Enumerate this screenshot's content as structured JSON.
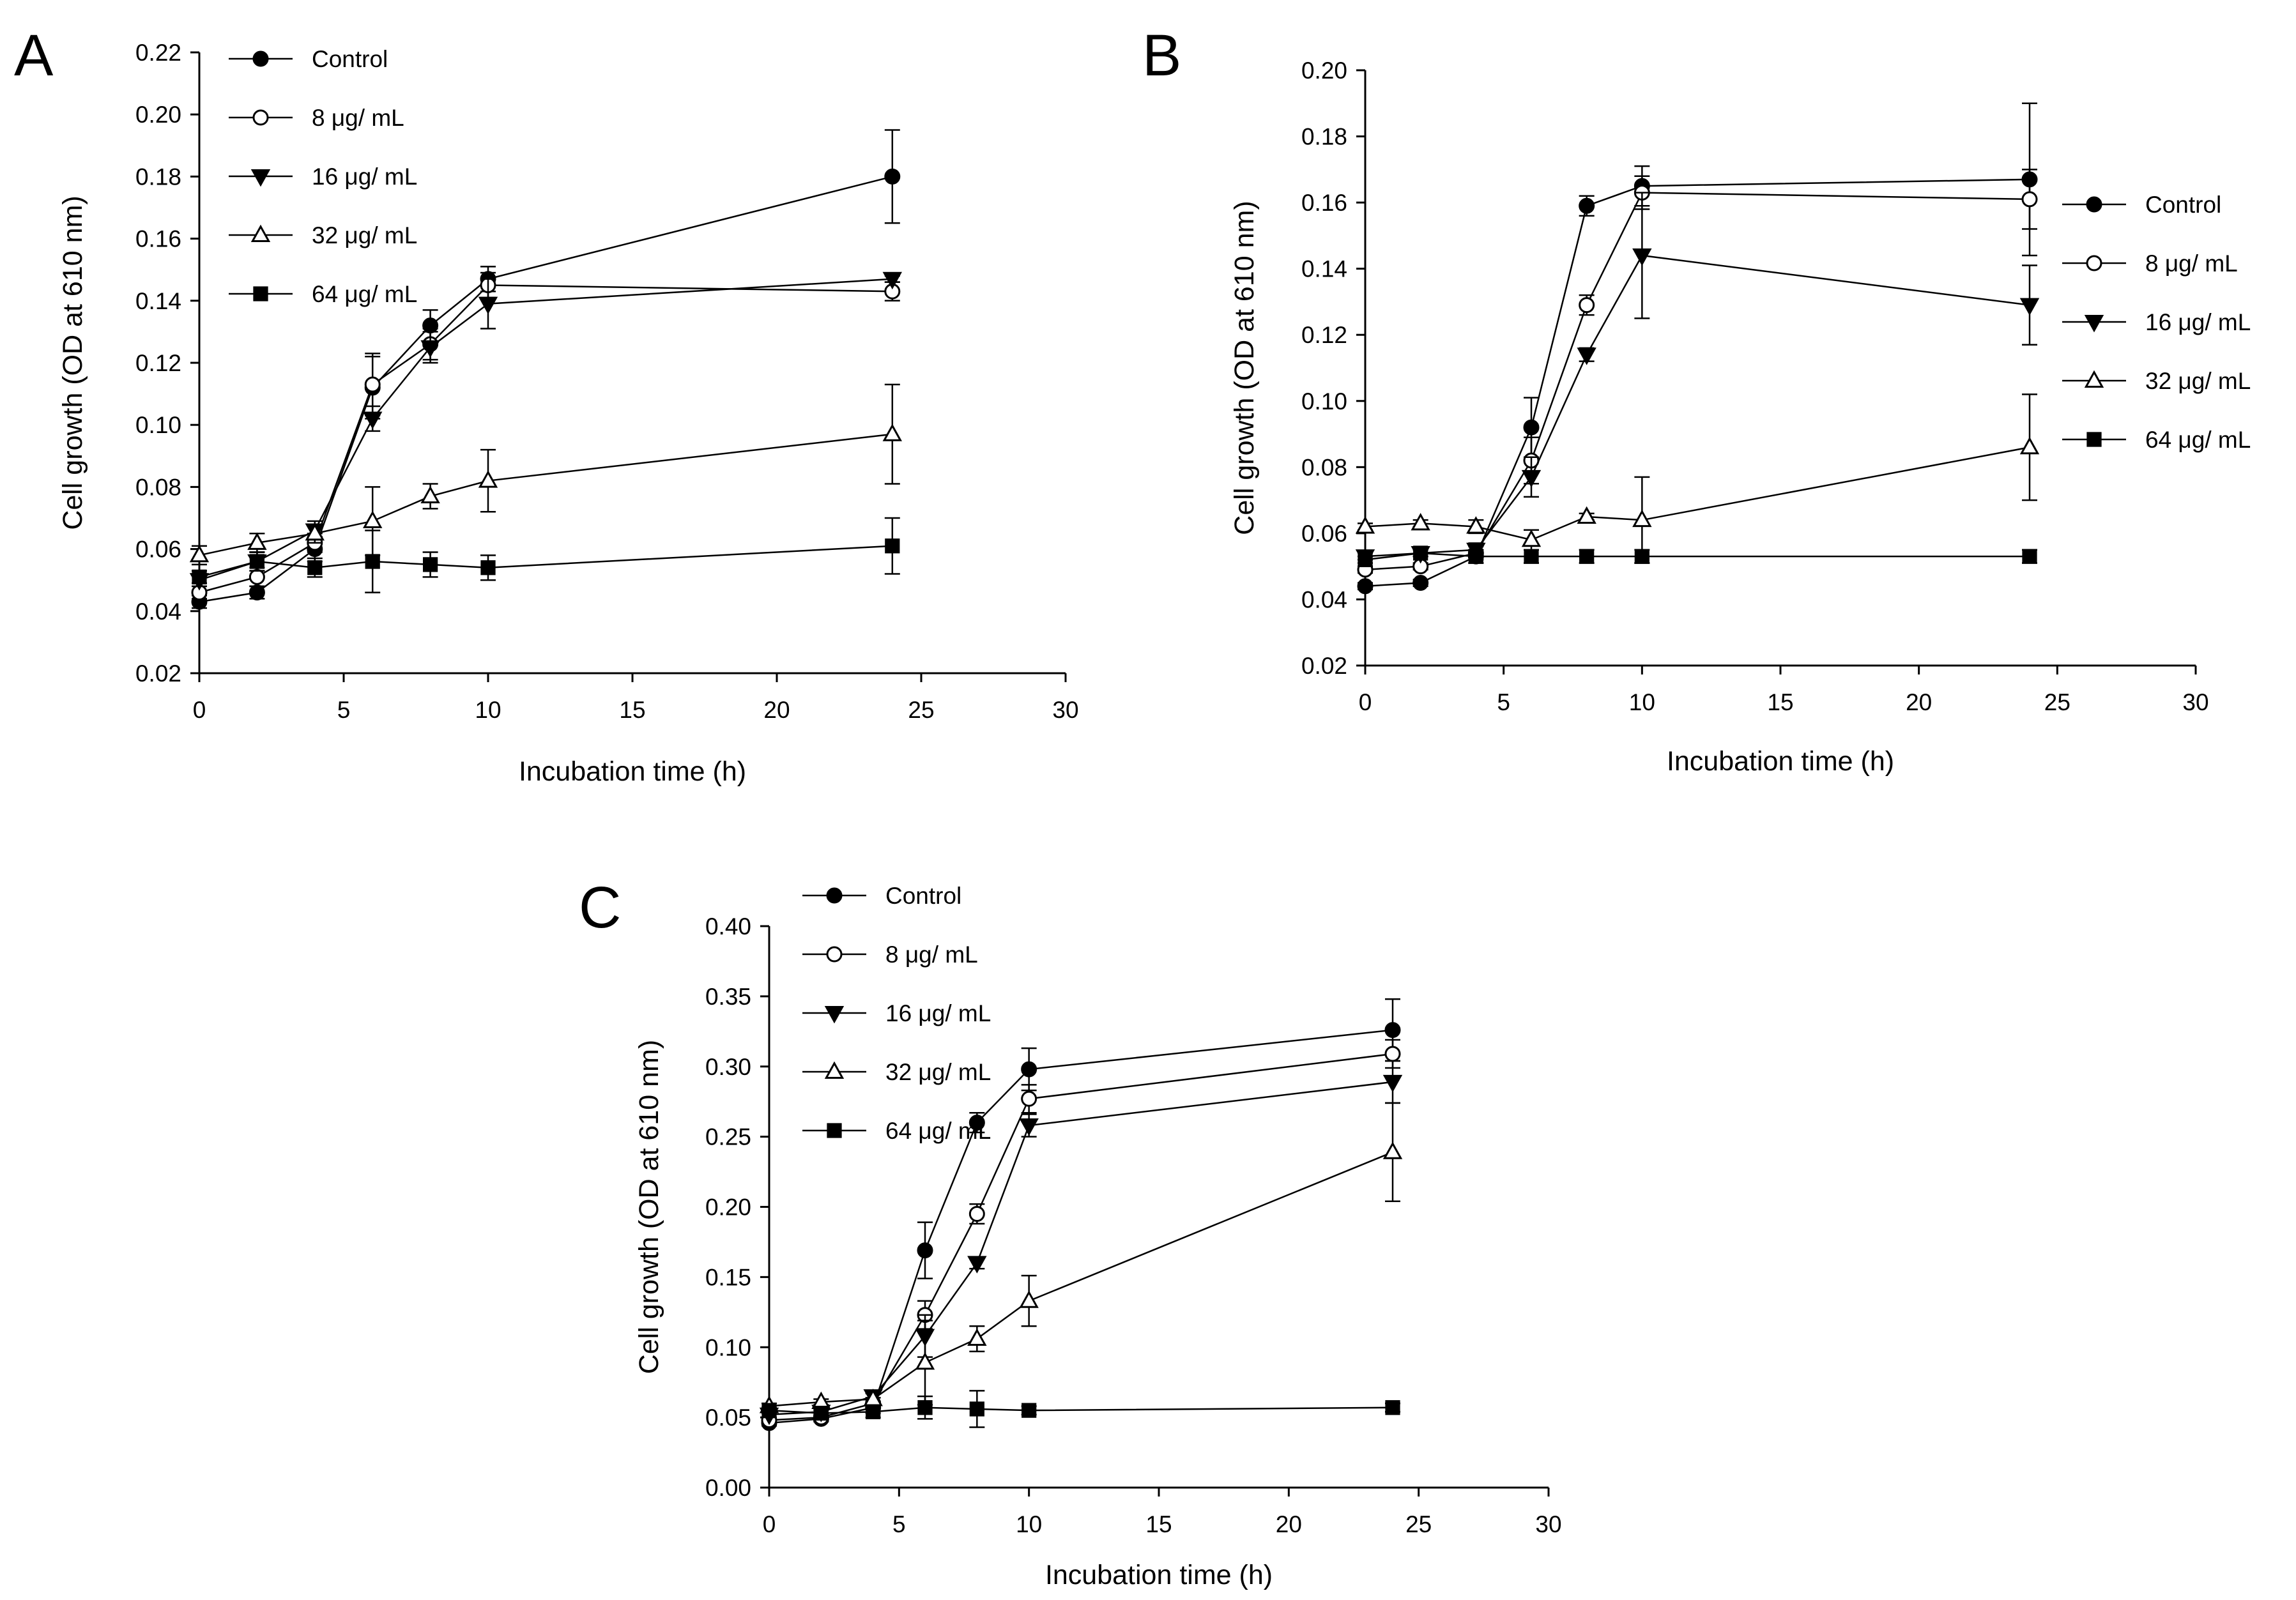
{
  "colors": {
    "ink": "#000000",
    "background": "#ffffff"
  },
  "chart_data": [
    {
      "panel": "A",
      "type": "line",
      "xlabel": "Incubation time (h)",
      "ylabel": "Cell growth (OD at 610 nm)",
      "xlim": [
        0,
        30
      ],
      "ylim": [
        0.02,
        0.22
      ],
      "xticks": [
        0,
        5,
        10,
        15,
        20,
        25,
        30
      ],
      "yticks": [
        0.02,
        0.04,
        0.06,
        0.08,
        0.1,
        0.12,
        0.14,
        0.16,
        0.18,
        0.2,
        0.22
      ],
      "ytick_labels": [
        "0.02",
        "0.04",
        "0.06",
        "0.08",
        "0.10",
        "0.12",
        "0.14",
        "0.16",
        "0.18",
        "0.20",
        "0.22"
      ],
      "legend_position": "top-left",
      "x": [
        0,
        2,
        4,
        6,
        8,
        10,
        24
      ],
      "series": [
        {
          "name": "Control",
          "marker": "circle-filled",
          "values": [
            0.043,
            0.046,
            0.06,
            0.112,
            0.132,
            0.147,
            0.18
          ],
          "errors": [
            0.002,
            0.002,
            0.004,
            0.01,
            0.005,
            0.004,
            0.015
          ]
        },
        {
          "name": "8 μg/ mL",
          "marker": "circle-open",
          "values": [
            0.046,
            0.051,
            0.062,
            0.113,
            0.126,
            0.145,
            0.143
          ],
          "errors": [
            0.002,
            0.003,
            0.003,
            0.01,
            0.005,
            0.004,
            0.003
          ]
        },
        {
          "name": "16 μg/ mL",
          "marker": "triangle-down-filled",
          "values": [
            0.05,
            0.056,
            0.066,
            0.102,
            0.125,
            0.139,
            0.147
          ],
          "errors": [
            0.002,
            0.003,
            0.003,
            0.004,
            0.005,
            0.008,
            0.001
          ]
        },
        {
          "name": "32 μg/ mL",
          "marker": "triangle-up-open",
          "values": [
            0.058,
            0.062,
            0.065,
            0.069,
            0.077,
            0.082,
            0.097
          ],
          "errors": [
            0.003,
            0.003,
            0.003,
            0.011,
            0.004,
            0.01,
            0.016
          ]
        },
        {
          "name": "64 μg/ mL",
          "marker": "square-filled",
          "values": [
            0.051,
            0.056,
            0.054,
            0.056,
            0.055,
            0.054,
            0.061
          ],
          "errors": [
            0.002,
            0.003,
            0.003,
            0.01,
            0.004,
            0.004,
            0.009
          ]
        }
      ]
    },
    {
      "panel": "B",
      "type": "line",
      "xlabel": "Incubation time (h)",
      "ylabel": "Cell growth (OD at 610 nm)",
      "xlim": [
        0,
        30
      ],
      "ylim": [
        0.02,
        0.2
      ],
      "xticks": [
        0,
        5,
        10,
        15,
        20,
        25,
        30
      ],
      "yticks": [
        0.02,
        0.04,
        0.06,
        0.08,
        0.1,
        0.12,
        0.14,
        0.16,
        0.18,
        0.2
      ],
      "ytick_labels": [
        "0.02",
        "0.04",
        "0.06",
        "0.08",
        "0.10",
        "0.12",
        "0.14",
        "0.16",
        "0.18",
        "0.20"
      ],
      "legend_position": "right",
      "x": [
        0,
        2,
        4,
        6,
        8,
        10,
        24
      ],
      "series": [
        {
          "name": "Control",
          "marker": "circle-filled",
          "values": [
            0.044,
            0.045,
            0.053,
            0.092,
            0.159,
            0.165,
            0.167
          ],
          "errors": [
            0.001,
            0.001,
            0.002,
            0.009,
            0.003,
            0.006,
            0.023
          ]
        },
        {
          "name": "8 μg/ mL",
          "marker": "circle-open",
          "values": [
            0.049,
            0.05,
            0.054,
            0.082,
            0.129,
            0.163,
            0.161
          ],
          "errors": [
            0.001,
            0.001,
            0.002,
            0.007,
            0.003,
            0.005,
            0.009
          ]
        },
        {
          "name": "16 μg/ mL",
          "marker": "triangle-down-filled",
          "values": [
            0.053,
            0.054,
            0.055,
            0.077,
            0.114,
            0.144,
            0.129
          ],
          "errors": [
            0.001,
            0.001,
            0.002,
            0.006,
            0.002,
            0.019,
            0.012
          ]
        },
        {
          "name": "32 μg/ mL",
          "marker": "triangle-up-open",
          "values": [
            0.062,
            0.063,
            0.062,
            0.058,
            0.065,
            0.064,
            0.086
          ],
          "errors": [
            0.001,
            0.001,
            0.002,
            0.003,
            0.001,
            0.013,
            0.016
          ]
        },
        {
          "name": "64 μg/ mL",
          "marker": "square-filled",
          "values": [
            0.052,
            0.054,
            0.053,
            0.053,
            0.053,
            0.053,
            0.053
          ],
          "errors": [
            0.001,
            0.001,
            0.002,
            0.002,
            0.002,
            0.002,
            0.002
          ]
        }
      ]
    },
    {
      "panel": "C",
      "type": "line",
      "xlabel": "Incubation time (h)",
      "ylabel": "Cell growth (OD at 610 nm)",
      "xlim": [
        0,
        30
      ],
      "ylim": [
        0.0,
        0.4
      ],
      "xticks": [
        0,
        5,
        10,
        15,
        20,
        25,
        30
      ],
      "yticks": [
        0.0,
        0.05,
        0.1,
        0.15,
        0.2,
        0.25,
        0.3,
        0.35,
        0.4
      ],
      "ytick_labels": [
        "0.00",
        "0.05",
        "0.10",
        "0.15",
        "0.20",
        "0.25",
        "0.30",
        "0.35",
        "0.40"
      ],
      "legend_position": "top-left",
      "x": [
        0,
        2,
        4,
        6,
        8,
        10,
        24
      ],
      "series": [
        {
          "name": "Control",
          "marker": "circle-filled",
          "values": [
            0.046,
            0.049,
            0.057,
            0.169,
            0.26,
            0.298,
            0.326
          ],
          "errors": [
            0.002,
            0.002,
            0.004,
            0.02,
            0.007,
            0.015,
            0.022
          ]
        },
        {
          "name": "8 μg/ mL",
          "marker": "circle-open",
          "values": [
            0.048,
            0.05,
            0.06,
            0.123,
            0.195,
            0.277,
            0.309
          ],
          "errors": [
            0.002,
            0.002,
            0.004,
            0.01,
            0.007,
            0.01,
            0.01
          ]
        },
        {
          "name": "16 μg/ mL",
          "marker": "triangle-down-filled",
          "values": [
            0.052,
            0.054,
            0.065,
            0.108,
            0.16,
            0.258,
            0.289
          ],
          "errors": [
            0.002,
            0.002,
            0.004,
            0.015,
            0.004,
            0.008,
            0.015
          ]
        },
        {
          "name": "32 μg/ mL",
          "marker": "triangle-up-open",
          "values": [
            0.058,
            0.061,
            0.063,
            0.089,
            0.106,
            0.133,
            0.239
          ],
          "errors": [
            0.002,
            0.002,
            0.004,
            0.03,
            0.009,
            0.018,
            0.035
          ]
        },
        {
          "name": "64 μg/ mL",
          "marker": "square-filled",
          "values": [
            0.055,
            0.053,
            0.054,
            0.057,
            0.056,
            0.055,
            0.057
          ],
          "errors": [
            0.002,
            0.002,
            0.004,
            0.008,
            0.013,
            0.003,
            0.003
          ]
        }
      ]
    }
  ]
}
